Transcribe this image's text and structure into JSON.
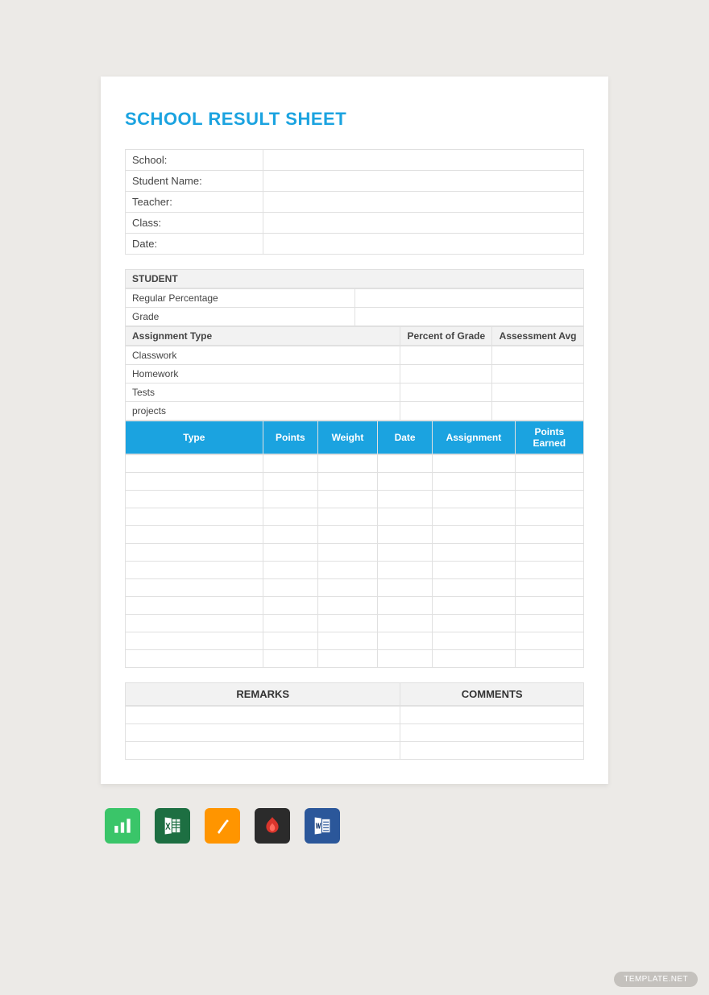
{
  "title": "SCHOOL RESULT SHEET",
  "colors": {
    "accent": "#1ba3e0",
    "page_bg": "#ffffff",
    "body_bg": "#eceae7",
    "border": "#e0e0e0",
    "header_bg": "#f2f2f2",
    "text": "#444444"
  },
  "info_fields": [
    {
      "label": "School:",
      "value": ""
    },
    {
      "label": "Student Name:",
      "value": ""
    },
    {
      "label": "Teacher:",
      "value": ""
    },
    {
      "label": "Class:",
      "value": ""
    },
    {
      "label": "Date:",
      "value": ""
    }
  ],
  "student_section": {
    "header": "STUDENT",
    "rows": [
      {
        "label": "Regular Percentage",
        "value": ""
      },
      {
        "label": "Grade",
        "value": ""
      }
    ]
  },
  "assignment_header": {
    "col1": "Assignment Type",
    "col2": "Percent of Grade",
    "col3": "Assessment Avg"
  },
  "assignment_types": [
    {
      "name": "Classwork",
      "percent": "",
      "avg": ""
    },
    {
      "name": "Homework",
      "percent": "",
      "avg": ""
    },
    {
      "name": "Tests",
      "percent": "",
      "avg": ""
    },
    {
      "name": "projects",
      "percent": "",
      "avg": ""
    }
  ],
  "data_columns": [
    "Type",
    "Points",
    "Weight",
    "Date",
    "Assignment",
    "Points Earned"
  ],
  "data_row_count": 12,
  "remarks": {
    "col1": "REMARKS",
    "col2": "COMMENTS",
    "row_count": 3
  },
  "format_icons": [
    {
      "name": "numbers",
      "bg": "#3ac569",
      "fg": "#ffffff"
    },
    {
      "name": "excel",
      "bg": "#1d6f42",
      "fg": "#ffffff"
    },
    {
      "name": "pages",
      "bg": "#ff9500",
      "fg": "#ffffff"
    },
    {
      "name": "pdf",
      "bg": "#2b2b2b",
      "fg": "#d9352c"
    },
    {
      "name": "word",
      "bg": "#2b579a",
      "fg": "#ffffff"
    }
  ],
  "watermark": "TEMPLATE.NET"
}
